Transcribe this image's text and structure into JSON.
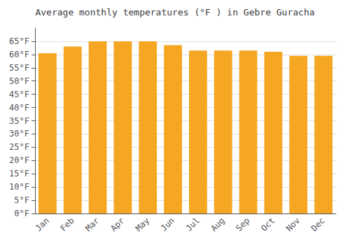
{
  "chart_data": {
    "type": "bar",
    "title": "Average monthly temperatures (°F ) in Gebre Guracha",
    "categories": [
      "Jan",
      "Feb",
      "Mar",
      "Apr",
      "May",
      "Jun",
      "Jul",
      "Aug",
      "Sep",
      "Oct",
      "Nov",
      "Dec"
    ],
    "values": [
      60.5,
      63.0,
      65.0,
      65.0,
      65.0,
      63.5,
      61.5,
      61.5,
      61.5,
      61.0,
      59.5,
      59.5
    ],
    "color": "#F5A623",
    "ylim": [
      0,
      70
    ],
    "yticks": [
      {
        "value": 0,
        "label": "0°F"
      },
      {
        "value": 5,
        "label": "5°F"
      },
      {
        "value": 10,
        "label": "10°F"
      },
      {
        "value": 15,
        "label": "15°F"
      },
      {
        "value": 20,
        "label": "20°F"
      },
      {
        "value": 25,
        "label": "25°F"
      },
      {
        "value": 30,
        "label": "30°F"
      },
      {
        "value": 35,
        "label": "35°F"
      },
      {
        "value": 40,
        "label": "40°F"
      },
      {
        "value": 45,
        "label": "45°F"
      },
      {
        "value": 50,
        "label": "50°F"
      },
      {
        "value": 55,
        "label": "55°F"
      },
      {
        "value": 60,
        "label": "60°F"
      },
      {
        "value": 65,
        "label": "65°F"
      }
    ],
    "grid": true
  }
}
